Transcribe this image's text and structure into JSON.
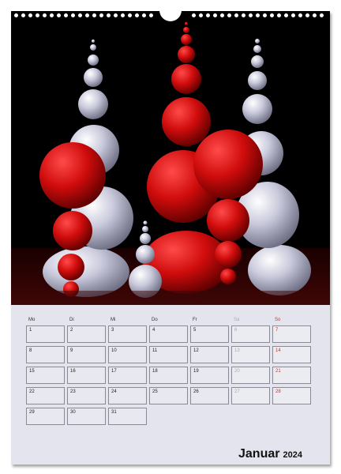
{
  "weekdays": [
    "Mo",
    "Di",
    "Mi",
    "Do",
    "Fr",
    "Sa",
    "So"
  ],
  "weeks": [
    [
      "1",
      "2",
      "3",
      "4",
      "5",
      "6",
      "7"
    ],
    [
      "8",
      "9",
      "10",
      "11",
      "12",
      "13",
      "14"
    ],
    [
      "15",
      "16",
      "17",
      "18",
      "19",
      "20",
      "21"
    ],
    [
      "22",
      "23",
      "24",
      "25",
      "26",
      "27",
      "28"
    ],
    [
      "29",
      "30",
      "31"
    ]
  ],
  "month": "Januar",
  "year": "2024",
  "colors": {
    "sunday": "#c0392b",
    "saturday": "#aaaaaa",
    "sphere_red": "#d01010",
    "sphere_white": "#d8d8e8"
  }
}
